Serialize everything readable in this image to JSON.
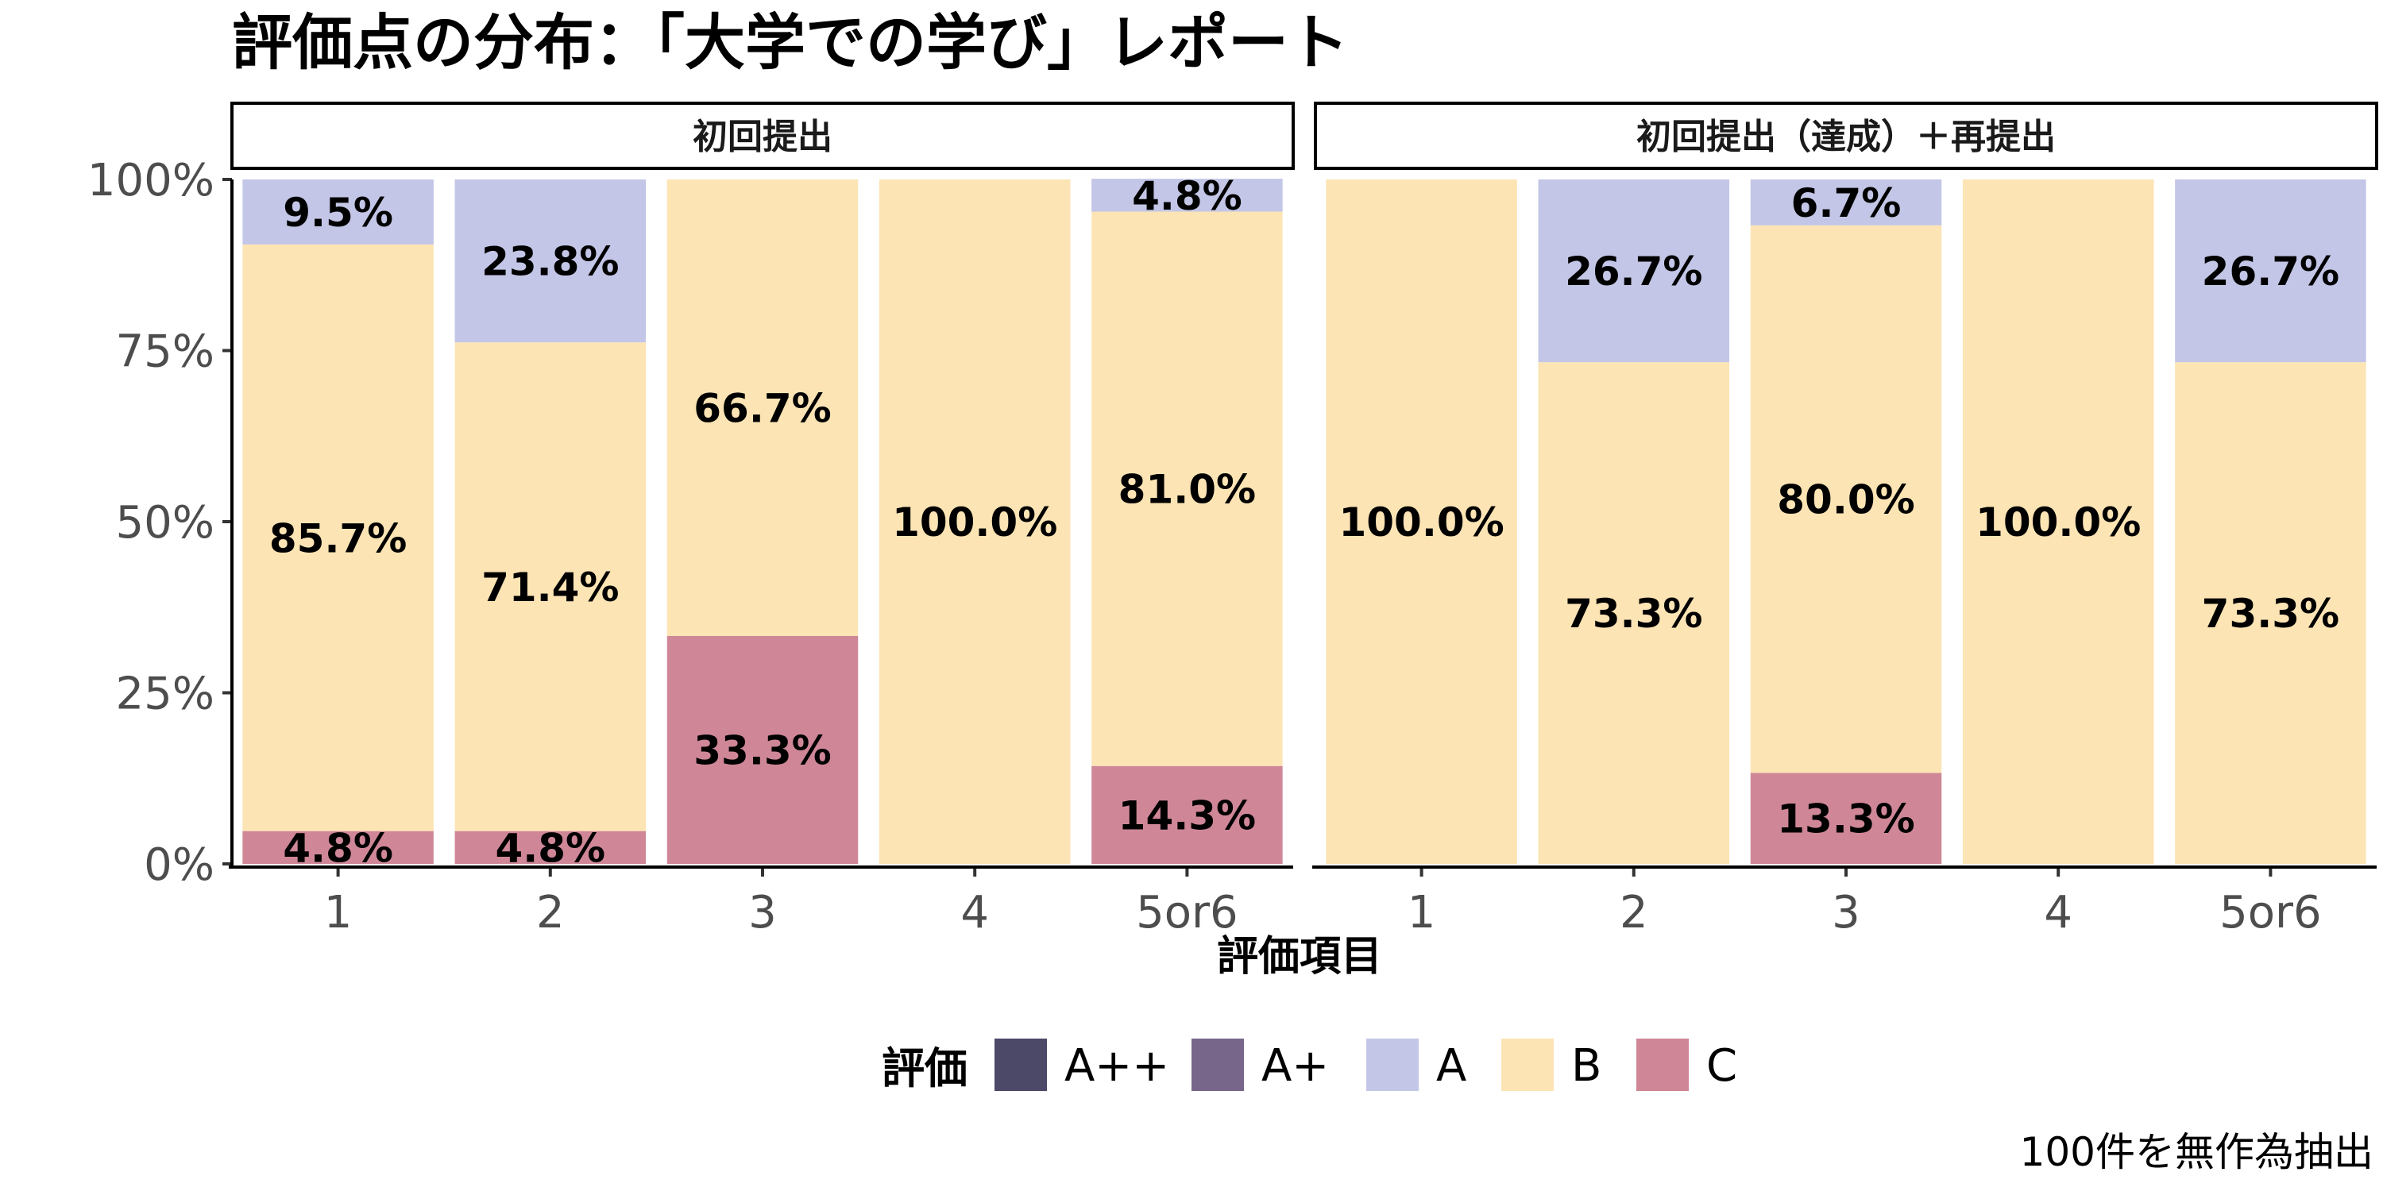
{
  "chart_data": {
    "type": "bar",
    "stacked": true,
    "normalized": true,
    "title": "評価点の分布：「大学での学び」レポート",
    "xlabel": "評価項目",
    "ylabel": "",
    "ylim": [
      0,
      1
    ],
    "yticks": [
      "0%",
      "25%",
      "50%",
      "75%",
      "100%"
    ],
    "caption": "100件を無作為抽出",
    "legend": {
      "title": "評価",
      "position": "bottom",
      "entries": [
        {
          "name": "A++",
          "color": "#4b4868"
        },
        {
          "name": "A+",
          "color": "#78668a"
        },
        {
          "name": "A",
          "color": "#c3c6e6"
        },
        {
          "name": "B",
          "color": "#fce4b4"
        },
        {
          "name": "C",
          "color": "#cf8798"
        }
      ]
    },
    "stack_order_bottom_to_top": [
      "C",
      "B",
      "A",
      "A+",
      "A++"
    ],
    "panels": [
      {
        "strip": "初回提出",
        "categories": [
          "1",
          "2",
          "3",
          "4",
          "5or6"
        ],
        "series": [
          {
            "name": "A++",
            "values": [
              0,
              0,
              0,
              0,
              0
            ]
          },
          {
            "name": "A+",
            "values": [
              0,
              0,
              0,
              0,
              0
            ]
          },
          {
            "name": "A",
            "values": [
              9.5,
              23.8,
              0,
              0,
              4.8
            ]
          },
          {
            "name": "B",
            "values": [
              85.7,
              71.4,
              66.7,
              100.0,
              81.0
            ]
          },
          {
            "name": "C",
            "values": [
              4.8,
              4.8,
              33.3,
              0,
              14.3
            ]
          }
        ],
        "labels": [
          [
            "9.5%",
            "85.7%",
            "4.8%"
          ],
          [
            "23.8%",
            "71.4%",
            "4.8%"
          ],
          [
            "66.7%",
            "33.3%"
          ],
          [
            "100.0%"
          ],
          [
            "4.8%",
            "81.0%",
            "14.3%"
          ]
        ]
      },
      {
        "strip": "初回提出（達成）＋再提出",
        "categories": [
          "1",
          "2",
          "3",
          "4",
          "5or6"
        ],
        "series": [
          {
            "name": "A++",
            "values": [
              0,
              0,
              0,
              0,
              0
            ]
          },
          {
            "name": "A+",
            "values": [
              0,
              0,
              0,
              0,
              0
            ]
          },
          {
            "name": "A",
            "values": [
              0,
              26.7,
              6.7,
              0,
              26.7
            ]
          },
          {
            "name": "B",
            "values": [
              100.0,
              73.3,
              80.0,
              100.0,
              73.3
            ]
          },
          {
            "name": "C",
            "values": [
              0,
              0,
              13.3,
              0,
              0
            ]
          }
        ],
        "labels": [
          [
            "100.0%"
          ],
          [
            "26.7%",
            "73.3%"
          ],
          [
            "6.7%",
            "80.0%",
            "13.3%"
          ],
          [
            "100.0%"
          ],
          [
            "26.7%",
            "73.3%"
          ]
        ]
      }
    ]
  }
}
